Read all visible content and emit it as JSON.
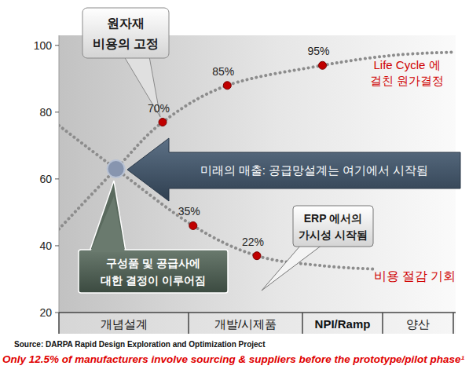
{
  "chart_data": {
    "type": "line",
    "categories": [
      "개념설계",
      "개발/시제품",
      "NPI/Ramp",
      "양산"
    ],
    "xlim": [
      0,
      4
    ],
    "ylim": [
      20,
      103
    ],
    "yticks": [
      20,
      40,
      60,
      80,
      100
    ],
    "grid": false,
    "series": [
      {
        "color": "#8c8c8c",
        "line_style": "dotted",
        "marker": "none",
        "x": [
          0,
          0.44,
          0.8,
          1.34,
          2.25,
          3.14,
          4
        ],
        "values": [
          45,
          63,
          77,
          88,
          94,
          97,
          98
        ]
      },
      {
        "color": "#8c8c8c",
        "line_style": "dotted",
        "marker": "none",
        "x": [
          0,
          0.44,
          1.04,
          1.6,
          2.25,
          2.9
        ],
        "values": [
          76,
          63,
          46,
          37,
          34,
          33
        ]
      }
    ],
    "points": [
      {
        "x": 0.8,
        "y": 77,
        "label": "70%",
        "color": "#c00000"
      },
      {
        "x": 1.34,
        "y": 88,
        "label": "85%",
        "color": "#c00000"
      },
      {
        "x": 2.25,
        "y": 94,
        "label": "95%",
        "color": "#c00000"
      },
      {
        "x": 1.04,
        "y": 46,
        "label": "35%",
        "color": "#c00000"
      },
      {
        "x": 1.6,
        "y": 37,
        "label": "22%",
        "color": "#c00000"
      }
    ],
    "annotations": [
      {
        "lines": [
          "원자재",
          "비용의 고정"
        ]
      },
      {
        "lines": [
          "Life Cycle 에",
          "걸친 원가결정"
        ]
      },
      {
        "lines": [
          "미래의 매출: 공급망설계는 여기에서 시작됨"
        ]
      },
      {
        "lines": [
          "ERP 에서의",
          "가시성 시작됨"
        ]
      },
      {
        "lines": [
          "구성품 및 공급사에",
          "대한 결정이 이루어짐"
        ]
      },
      {
        "lines": [
          "비용 절감 기회"
        ]
      }
    ],
    "source": "Source: DARPA Rapid Design Exploration and Optimization Project",
    "footnote": "Only 12.5% of manufacturers involve sourcing & suppliers before the prototype/pilot phase¹"
  }
}
